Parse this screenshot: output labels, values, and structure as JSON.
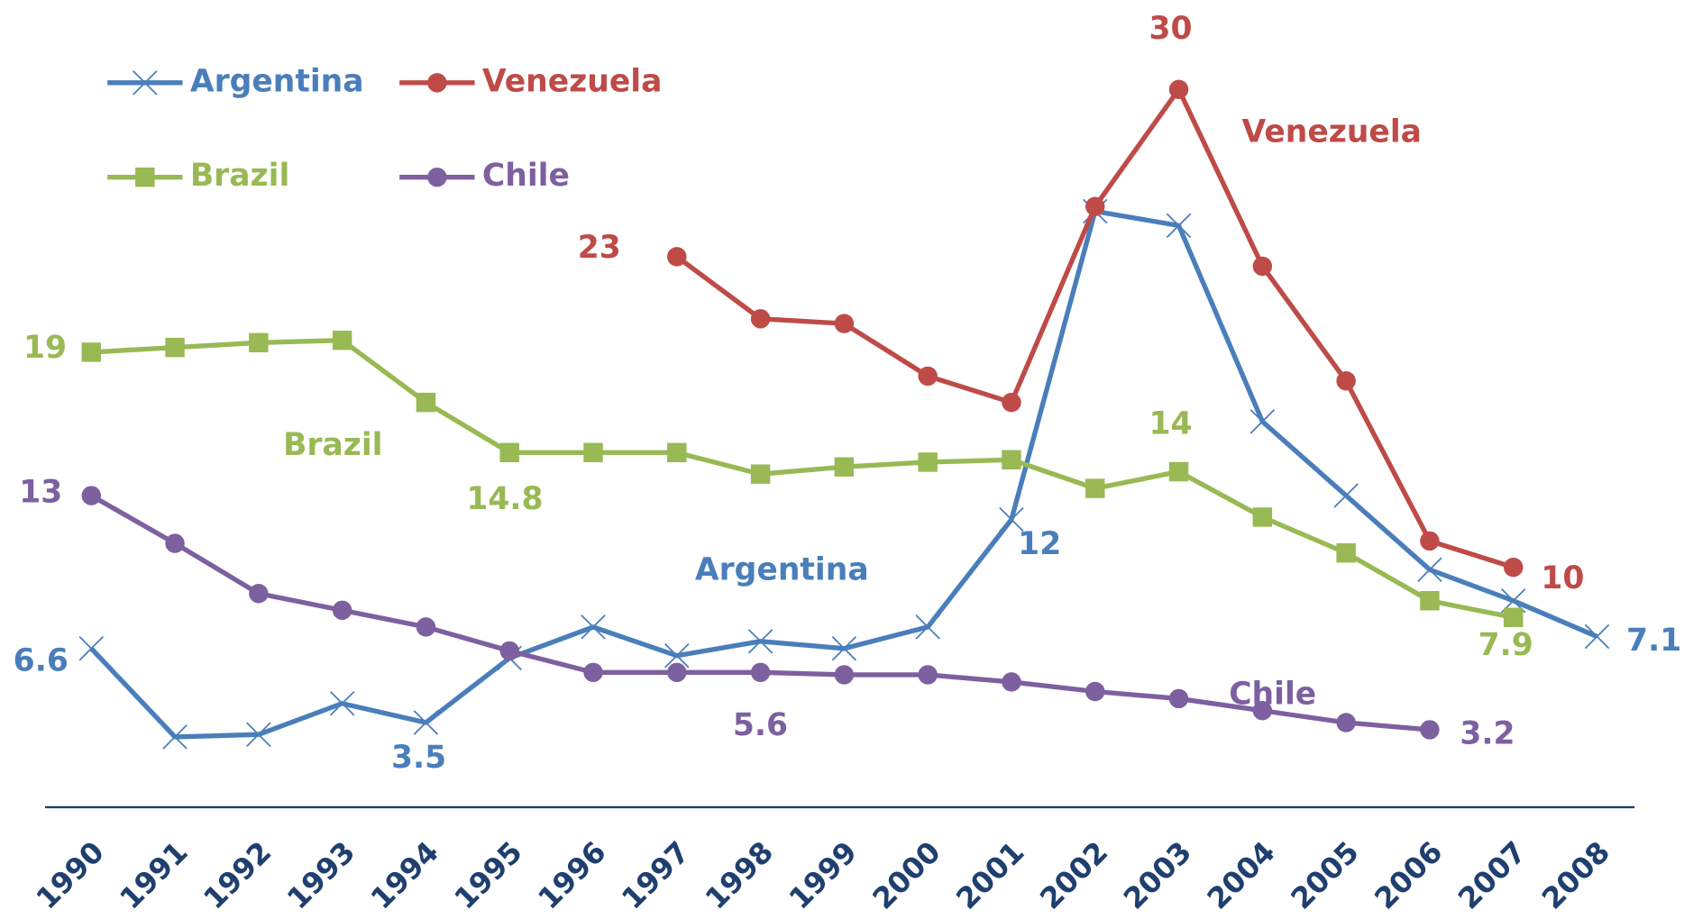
{
  "chart_data": {
    "type": "line",
    "categories": [
      "1990",
      "1991",
      "1992",
      "1993",
      "1994",
      "1995",
      "1996",
      "1997",
      "1998",
      "1999",
      "2000",
      "2001",
      "2002",
      "2003",
      "2004",
      "2005",
      "2006",
      "2007",
      "2008"
    ],
    "ylim": [
      0,
      34
    ],
    "series": [
      {
        "name": "Argentina",
        "color": "#4a7ebb",
        "marker": "x",
        "values": [
          6.6,
          2.9,
          3.0,
          4.3,
          3.5,
          6.2,
          7.5,
          6.3,
          6.9,
          6.6,
          7.5,
          12,
          24.9,
          24.3,
          16.1,
          13.0,
          9.9,
          8.6,
          7.1
        ]
      },
      {
        "name": "Venezuela",
        "color": "#be4b48",
        "marker": "circle",
        "values": [
          null,
          null,
          null,
          null,
          null,
          null,
          null,
          23,
          20.4,
          20.2,
          18.0,
          16.9,
          25.1,
          30,
          22.6,
          17.8,
          11.1,
          10,
          null
        ]
      },
      {
        "name": "Brazil",
        "color": "#98b954",
        "marker": "square",
        "values": [
          19,
          19.2,
          19.4,
          19.5,
          16.9,
          14.8,
          14.8,
          14.8,
          13.9,
          14.2,
          14.4,
          14.5,
          13.3,
          14,
          12.1,
          10.6,
          8.6,
          7.9,
          null
        ]
      },
      {
        "name": "Chile",
        "color": "#7d60a0",
        "marker": "circle",
        "values": [
          13,
          11.0,
          8.9,
          8.2,
          7.5,
          6.5,
          5.6,
          5.6,
          5.6,
          5.5,
          5.5,
          5.2,
          4.8,
          4.5,
          4.0,
          3.5,
          3.2,
          null,
          null
        ]
      }
    ]
  }
}
